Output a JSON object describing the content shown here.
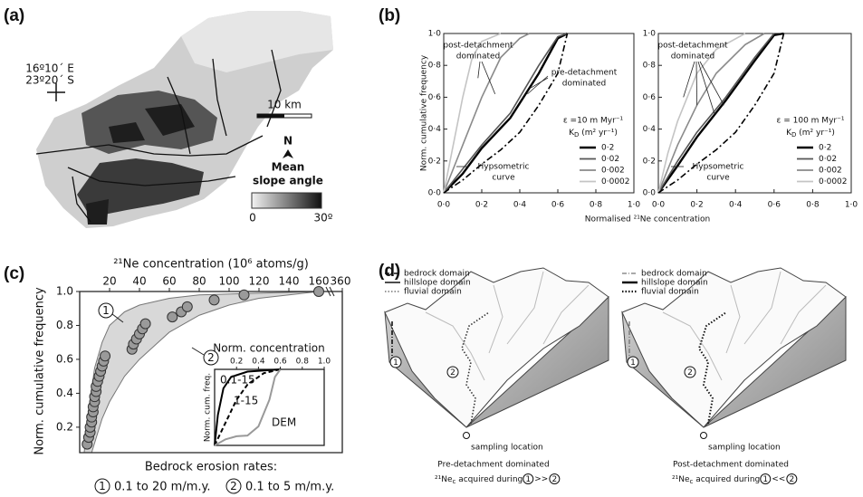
{
  "map": {
    "label": "(a)",
    "lon": "16º10´ E",
    "lat": "23º20´ S",
    "scale": "10 km",
    "north": "N",
    "legend_title": [
      "Mean",
      "slope angle"
    ],
    "legend_min": "0",
    "legend_max": "30º"
  },
  "chart_data": [
    {
      "type": "line",
      "panel": "(b)",
      "ylabel": "Norm. cumulative frequency",
      "xlabel": "Normalised ²¹Ne concentration",
      "xlim": [
        0,
        1
      ],
      "ylim": [
        0,
        1
      ],
      "xticks": [
        {
          "value": 0,
          "label": "0·0"
        },
        {
          "value": 0.2,
          "label": "0·2"
        },
        {
          "value": 0.4,
          "label": "0·4"
        },
        {
          "value": 0.6,
          "label": "0·6"
        },
        {
          "value": 0.8,
          "label": "0·8"
        },
        {
          "value": 1,
          "label": "1·0"
        }
      ],
      "yticks": [
        {
          "value": 0,
          "label": "0·0"
        },
        {
          "value": 0.2,
          "label": "0·2"
        },
        {
          "value": 0.4,
          "label": "0·4"
        },
        {
          "value": 0.6,
          "label": "0·6"
        },
        {
          "value": 0.8,
          "label": "0·8"
        },
        {
          "value": 1,
          "label": "1·0"
        }
      ],
      "annotations": [
        {
          "text": [
            "post-detachment",
            "dominated"
          ]
        },
        {
          "text": [
            "pre-detachment",
            "dominated"
          ]
        },
        {
          "text": [
            "Hypsometric",
            "curve"
          ]
        }
      ],
      "legend_title": "ε =10 m Myr⁻¹",
      "legend_unit": {
        "symbol": "K",
        "sub": "D",
        "unit": " (m² yr⁻¹)"
      },
      "series": [
        {
          "name": "0·2",
          "color": "#000000",
          "dash": "solid",
          "x": [
            0,
            0.1,
            0.2,
            0.35,
            0.5,
            0.6,
            0.65
          ],
          "values": [
            0,
            0.12,
            0.28,
            0.47,
            0.75,
            0.97,
            1
          ]
        },
        {
          "name": "0·02",
          "color": "#555555",
          "dash": "solid",
          "x": [
            0,
            0.1,
            0.2,
            0.35,
            0.5,
            0.6,
            0.65
          ],
          "values": [
            0,
            0.15,
            0.3,
            0.5,
            0.8,
            0.98,
            1
          ]
        },
        {
          "name": "0·002",
          "color": "#8a8a8a",
          "dash": "solid",
          "x": [
            0,
            0.1,
            0.2,
            0.3,
            0.4,
            0.45
          ],
          "values": [
            0,
            0.3,
            0.6,
            0.85,
            0.97,
            1
          ]
        },
        {
          "name": "0·0002",
          "color": "#c4c4c4",
          "dash": "solid",
          "x": [
            0,
            0.05,
            0.1,
            0.15,
            0.2,
            0.3
          ],
          "values": [
            0,
            0.3,
            0.6,
            0.85,
            0.95,
            1
          ]
        },
        {
          "color": "#000000",
          "dash": "dash-dot",
          "x": [
            0,
            0.1,
            0.2,
            0.3,
            0.4,
            0.5,
            0.6,
            0.65
          ],
          "values": [
            0,
            0.08,
            0.18,
            0.27,
            0.38,
            0.55,
            0.75,
            1
          ]
        }
      ]
    },
    {
      "type": "line",
      "xlim": [
        0,
        1
      ],
      "ylim": [
        0,
        1
      ],
      "xticks": [
        {
          "value": 0,
          "label": "0·0"
        },
        {
          "value": 0.2,
          "label": "0·2"
        },
        {
          "value": 0.4,
          "label": "0·4"
        },
        {
          "value": 0.6,
          "label": "0·6"
        },
        {
          "value": 0.8,
          "label": "0·8"
        },
        {
          "value": 1,
          "label": "1·0"
        }
      ],
      "yticks": [
        {
          "value": 0,
          "label": "0·0"
        },
        {
          "value": 0.2,
          "label": "0·2"
        },
        {
          "value": 0.4,
          "label": "0·4"
        },
        {
          "value": 0.6,
          "label": "0·6"
        },
        {
          "value": 0.8,
          "label": "0·8"
        },
        {
          "value": 1,
          "label": "1·0"
        }
      ],
      "annotations": [
        {
          "text": [
            "post-detachment",
            "dominated"
          ]
        },
        {
          "text": [
            "Hypsometric",
            "curve"
          ]
        }
      ],
      "legend_title": "ε = 100 m Myr⁻¹",
      "legend_unit": {
        "symbol": "K",
        "sub": "D",
        "unit": " (m² yr⁻¹)"
      },
      "series": [
        {
          "name": "0·2",
          "color": "#000000",
          "dash": "solid",
          "x": [
            0,
            0.1,
            0.2,
            0.35,
            0.5,
            0.6,
            0.65
          ],
          "values": [
            0,
            0.17,
            0.35,
            0.58,
            0.83,
            0.99,
            1
          ]
        },
        {
          "name": "0·02",
          "color": "#555555",
          "dash": "solid",
          "x": [
            0,
            0.1,
            0.2,
            0.35,
            0.5,
            0.6
          ],
          "values": [
            0,
            0.2,
            0.38,
            0.6,
            0.85,
            1
          ]
        },
        {
          "name": "0·002",
          "color": "#8a8a8a",
          "dash": "solid",
          "x": [
            0,
            0.1,
            0.2,
            0.3,
            0.45,
            0.55
          ],
          "values": [
            0,
            0.3,
            0.55,
            0.75,
            0.93,
            1
          ]
        },
        {
          "name": "0·0002",
          "color": "#c4c4c4",
          "dash": "solid",
          "x": [
            0,
            0.05,
            0.1,
            0.2,
            0.3,
            0.45
          ],
          "values": [
            0,
            0.25,
            0.45,
            0.75,
            0.9,
            1
          ]
        },
        {
          "color": "#000000",
          "dash": "dash-dot",
          "x": [
            0,
            0.1,
            0.2,
            0.3,
            0.4,
            0.5,
            0.6,
            0.65
          ],
          "values": [
            0,
            0.08,
            0.18,
            0.27,
            0.38,
            0.55,
            0.75,
            1
          ]
        }
      ]
    },
    {
      "type": "scatter",
      "panel": "(c)",
      "title": "²¹Ne concentration (10⁶ atoms/g)",
      "ylabel": "Norm. cumulative frequency",
      "xlim": [
        0,
        160
      ],
      "ylim": [
        0.05,
        1
      ],
      "xticks": [
        20,
        40,
        60,
        80,
        100,
        120,
        140,
        160
      ],
      "x_break_tick": {
        "value": 360,
        "label": "360"
      },
      "yticks": [
        0.2,
        0.4,
        0.6,
        0.8,
        {
          "value": 1,
          "label": "1.0"
        }
      ],
      "color": "#9a9a9a",
      "x": [
        5,
        6,
        7,
        7,
        8,
        8,
        9,
        9,
        10,
        10,
        11,
        11,
        12,
        13,
        14,
        15,
        16,
        17,
        35,
        36,
        38,
        40,
        42,
        44,
        62,
        68,
        72,
        90,
        110,
        160
      ],
      "values": [
        0.1,
        0.14,
        0.17,
        0.2,
        0.23,
        0.26,
        0.29,
        0.32,
        0.35,
        0.38,
        0.41,
        0.44,
        0.47,
        0.5,
        0.53,
        0.56,
        0.59,
        0.62,
        0.66,
        0.69,
        0.72,
        0.75,
        0.78,
        0.81,
        0.85,
        0.88,
        0.91,
        0.95,
        0.98,
        1
      ],
      "bands": [
        {
          "label": "1",
          "x": [
            3,
            6,
            10,
            15,
            20,
            30,
            40,
            60,
            80,
            120,
            160
          ],
          "values": [
            0.05,
            0.3,
            0.55,
            0.7,
            0.8,
            0.88,
            0.92,
            0.96,
            0.98,
            0.99,
            1
          ]
        },
        {
          "label": "2",
          "x": [
            8,
            15,
            20,
            30,
            40,
            60,
            80,
            100,
            120,
            160
          ],
          "values": [
            0.05,
            0.25,
            0.35,
            0.5,
            0.6,
            0.76,
            0.86,
            0.92,
            0.96,
            1
          ]
        }
      ],
      "legend_title": "Bedrock erosion rates:",
      "legend": [
        {
          "marker": "1",
          "text": "0.1 to 20 m/m.y."
        },
        {
          "marker": "2",
          "text": "0.1 to 5 m/m.y."
        }
      ]
    },
    {
      "type": "line",
      "title": "Norm. concentration",
      "ylabel": "Norm. cum. freq.",
      "xlim": [
        0,
        1
      ],
      "ylim": [
        0,
        1
      ],
      "xticks": [
        0.2,
        0.4,
        0.6,
        0.8,
        {
          "value": 1,
          "label": "1.0"
        }
      ],
      "series": [
        {
          "name": "0.1-15",
          "color": "#000000",
          "dash": "solid",
          "x": [
            0,
            0.03,
            0.08,
            0.15,
            0.3,
            0.6
          ],
          "values": [
            0,
            0.4,
            0.75,
            0.9,
            0.97,
            1
          ]
        },
        {
          "name": "1-15",
          "color": "#000000",
          "dash": "dashed",
          "x": [
            0,
            0.1,
            0.2,
            0.3,
            0.45,
            0.6
          ],
          "values": [
            0,
            0.3,
            0.6,
            0.8,
            0.95,
            1
          ]
        },
        {
          "name": "DEM",
          "color": "#999999",
          "dash": "solid",
          "x": [
            0,
            0.1,
            0.2,
            0.3,
            0.4,
            0.5,
            0.55,
            0.6
          ],
          "values": [
            0,
            0.08,
            0.12,
            0.13,
            0.25,
            0.6,
            0.9,
            1
          ]
        }
      ]
    }
  ],
  "diagram": {
    "label": "(d)",
    "panels": [
      {
        "legend": [
          "bedrock domain",
          "hillslope domain",
          "fluvial domain"
        ],
        "markers": [
          "1",
          "2"
        ],
        "sampling": "sampling location",
        "caption": "Pre-detachment dominated",
        "caption_2": {
          "prefix": "²¹Ne",
          "sub": "c",
          "text": " acquired during ",
          "left": "1",
          "relation": ">>",
          "right": "2"
        }
      },
      {
        "legend": [
          "bedrock domain",
          "hillslope domain",
          "fluvial domain"
        ],
        "markers": [
          "1",
          "2"
        ],
        "sampling": "sampling location",
        "caption": "Post-detachment dominated",
        "caption_2": {
          "prefix": "²¹Ne",
          "sub": "c",
          "text": " acquired during ",
          "left": "1",
          "relation": "<<",
          "right": "2"
        }
      }
    ]
  }
}
